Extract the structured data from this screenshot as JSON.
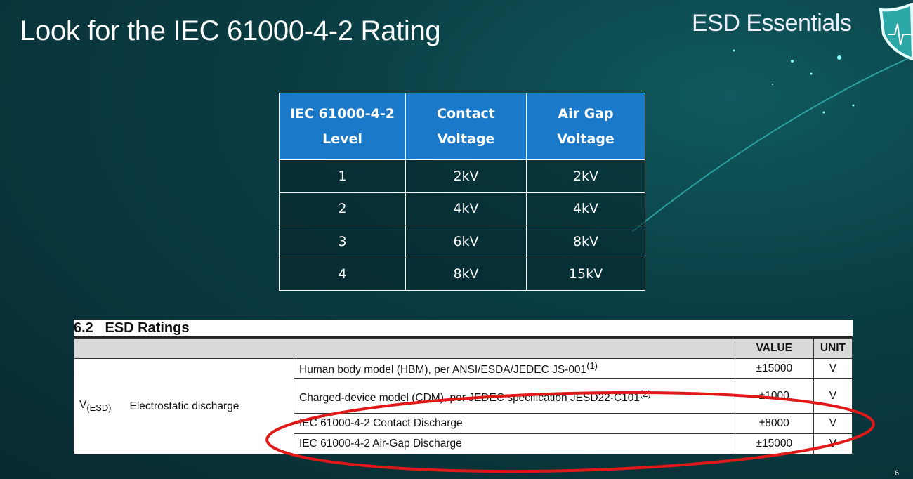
{
  "slide": {
    "title": "Look for the IEC 61000-4-2 Rating",
    "brand": "ESD Essentials",
    "page_number": "6",
    "accent_color": "#1a7ac9",
    "highlight_color": "#e01818"
  },
  "levels_table": {
    "headers": [
      [
        "IEC 61000-4-2",
        "Level"
      ],
      [
        "Contact",
        "Voltage"
      ],
      [
        "Air Gap",
        "Voltage"
      ]
    ],
    "rows": [
      [
        "1",
        "2kV",
        "2kV"
      ],
      [
        "2",
        "4kV",
        "4kV"
      ],
      [
        "3",
        "6kV",
        "8kV"
      ],
      [
        "4",
        "8kV",
        "15kV"
      ]
    ]
  },
  "esd_ratings": {
    "title": "6.2   ESD Ratings",
    "headers": {
      "value": "VALUE",
      "unit": "UNIT"
    },
    "symbol": "V",
    "symbol_sub": "(ESD)",
    "parameter": "Electrostatic discharge",
    "rows": [
      {
        "desc": "Human body model (HBM), per ANSI/ESDA/JEDEC JS-001",
        "note": "(1)",
        "value": "±15000",
        "unit": "V"
      },
      {
        "desc": "Charged-device model (CDM), per JEDEC specification JESD22-C101",
        "note": "(2)",
        "value": "±1000",
        "unit": "V"
      },
      {
        "desc": "IEC 61000-4-2 Contact Discharge",
        "note": "",
        "value": "±8000",
        "unit": "V"
      },
      {
        "desc": "IEC 61000-4-2 Air-Gap Discharge",
        "note": "",
        "value": "±15000",
        "unit": "V"
      }
    ]
  }
}
